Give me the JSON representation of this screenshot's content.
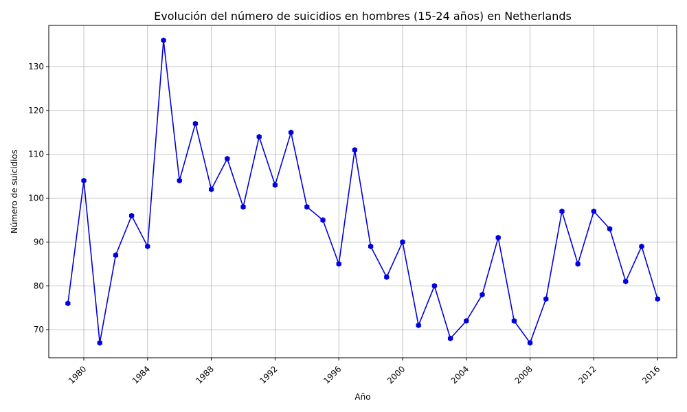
{
  "chart_data": {
    "type": "line",
    "title": "Evolución del número de suicidios en hombres (15-24 años) en Netherlands",
    "xlabel": "Año",
    "ylabel": "Número de suicidios",
    "xlim": [
      1977.8,
      2017.2
    ],
    "ylim": [
      63.6,
      139.4
    ],
    "x_ticks": [
      1980,
      1984,
      1988,
      1992,
      1996,
      2000,
      2004,
      2008,
      2012,
      2016
    ],
    "y_ticks": [
      70,
      80,
      90,
      100,
      110,
      120,
      130
    ],
    "grid": true,
    "color": "#0000dd",
    "marker": "hexagon",
    "x": [
      1979,
      1980,
      1981,
      1982,
      1983,
      1984,
      1985,
      1986,
      1987,
      1988,
      1989,
      1990,
      1991,
      1992,
      1993,
      1994,
      1995,
      1996,
      1997,
      1998,
      1999,
      2000,
      2001,
      2002,
      2003,
      2004,
      2005,
      2006,
      2007,
      2008,
      2009,
      2010,
      2011,
      2012,
      2013,
      2014,
      2015,
      2016
    ],
    "y": [
      76,
      104,
      67,
      87,
      96,
      89,
      136,
      104,
      117,
      102,
      109,
      98,
      114,
      103,
      115,
      98,
      95,
      85,
      111,
      89,
      82,
      90,
      71,
      80,
      68,
      72,
      78,
      91,
      72,
      67,
      77,
      97,
      85,
      97,
      93,
      81,
      89,
      77
    ]
  }
}
